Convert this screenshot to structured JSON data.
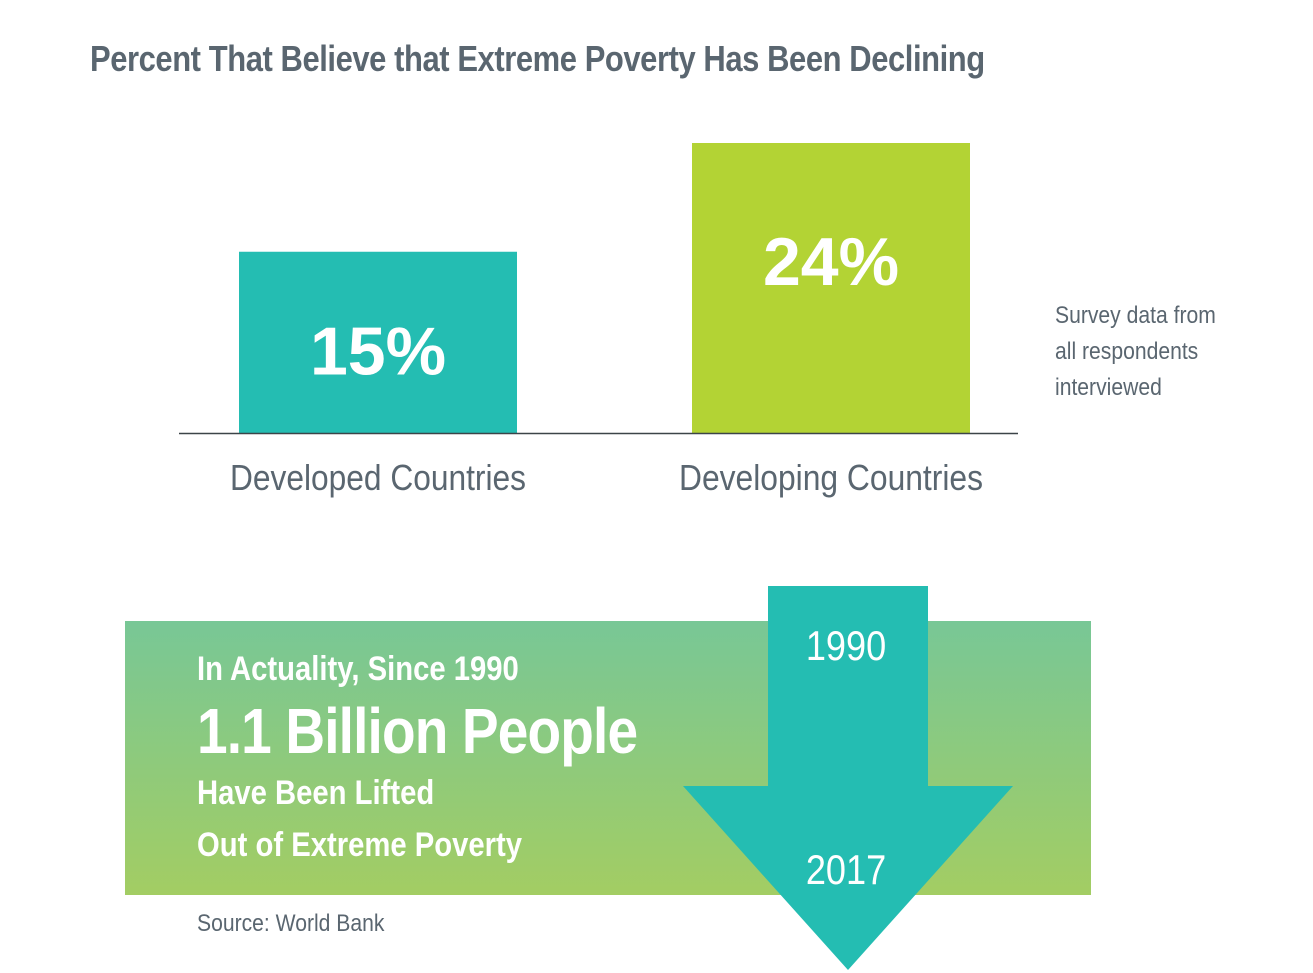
{
  "chart_data": {
    "type": "bar",
    "title": "Percent That Believe that Extreme Poverty Has Been Declining",
    "categories": [
      "Developed Countries",
      "Developing Countries"
    ],
    "values": [
      15,
      24
    ],
    "data_labels": [
      "15%",
      "24%"
    ],
    "colors": [
      "#24bdb2",
      "#b3d334"
    ],
    "ylim": [
      0,
      24
    ],
    "xlabel": "",
    "ylabel": "",
    "grid": false
  },
  "note": {
    "lines": [
      "Survey data from",
      "all respondents",
      "interviewed"
    ]
  },
  "banner": {
    "line1": "In Actuality, Since 1990",
    "line2": "1.1 Billion People",
    "line3": "Have Been Lifted",
    "line4": "Out of Extreme Poverty"
  },
  "arrow": {
    "start_year": "1990",
    "end_year": "2017",
    "color": "#24bdb2"
  },
  "source": "Source: World Bank"
}
